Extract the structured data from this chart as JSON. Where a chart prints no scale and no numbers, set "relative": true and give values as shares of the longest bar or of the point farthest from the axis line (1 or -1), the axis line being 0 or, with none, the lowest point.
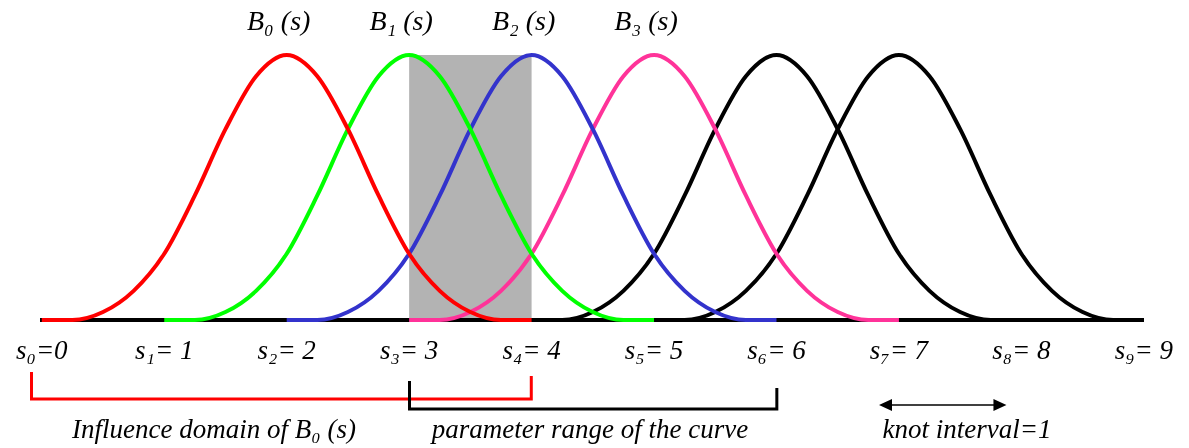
{
  "chart_data": {
    "type": "line",
    "relative": true,
    "marker": "none",
    "line_style": "solid",
    "x": [
      0,
      0.25,
      0.5,
      0.75,
      1,
      1.25,
      1.5,
      1.75,
      2,
      2.25,
      2.5,
      2.75,
      3,
      3.25,
      3.5,
      3.75,
      4,
      4.25,
      4.5,
      4.75,
      5,
      5.25,
      5.5,
      5.75,
      6,
      6.25,
      6.5,
      6.75,
      7,
      7.25,
      7.5,
      7.75,
      8,
      8.25,
      8.5,
      8.75,
      9
    ],
    "xlim": [
      0,
      9
    ],
    "xticks": [
      {
        "value": 0,
        "label": "s₀=0"
      },
      {
        "value": 1,
        "label": "s₁= 1"
      },
      {
        "value": 2,
        "label": "s₂= 2"
      },
      {
        "value": 3,
        "label": "s₃= 3"
      },
      {
        "value": 4,
        "label": "s₄= 4"
      },
      {
        "value": 5,
        "label": "s₅= 5"
      },
      {
        "value": 6,
        "label": "s₆= 6"
      },
      {
        "value": 7,
        "label": "s₇= 7"
      },
      {
        "value": 8,
        "label": "s₈= 8"
      },
      {
        "value": 9,
        "label": "s₉= 9"
      }
    ],
    "series": [
      {
        "name": "B₀ (s)",
        "color": "#ff0000",
        "values": [
          0,
          0,
          0.03,
          0.11,
          0.25,
          0.47,
          0.72,
          0.92,
          1,
          0.92,
          0.72,
          0.47,
          0.25,
          0.11,
          0.03,
          0,
          0,
          null,
          null,
          null,
          null,
          null,
          null,
          null,
          null,
          null,
          null,
          null,
          null,
          null,
          null,
          null,
          null,
          null,
          null,
          null,
          null
        ]
      },
      {
        "name": "B₁ (s)",
        "color": "#00ff00",
        "values": [
          null,
          null,
          null,
          null,
          0,
          0,
          0.03,
          0.11,
          0.25,
          0.47,
          0.72,
          0.92,
          1,
          0.92,
          0.72,
          0.47,
          0.25,
          0.11,
          0.03,
          0,
          0,
          null,
          null,
          null,
          null,
          null,
          null,
          null,
          null,
          null,
          null,
          null,
          null,
          null,
          null,
          null,
          null
        ]
      },
      {
        "name": "B₂ (s)",
        "color": "#3333cc",
        "values": [
          null,
          null,
          null,
          null,
          null,
          null,
          null,
          null,
          0,
          0,
          0.03,
          0.11,
          0.25,
          0.47,
          0.72,
          0.92,
          1,
          0.92,
          0.72,
          0.47,
          0.25,
          0.11,
          0.03,
          0,
          0,
          null,
          null,
          null,
          null,
          null,
          null,
          null,
          null,
          null,
          null,
          null,
          null
        ]
      },
      {
        "name": "B₃ (s)",
        "color": "#ff3399",
        "values": [
          null,
          null,
          null,
          null,
          null,
          null,
          null,
          null,
          null,
          null,
          null,
          null,
          0,
          0,
          0.03,
          0.11,
          0.25,
          0.47,
          0.72,
          0.92,
          1,
          0.92,
          0.72,
          0.47,
          0.25,
          0.11,
          0.03,
          0,
          0,
          null,
          null,
          null,
          null,
          null,
          null,
          null,
          null
        ]
      },
      {
        "color": "#000000",
        "values": [
          null,
          null,
          null,
          null,
          null,
          null,
          null,
          null,
          null,
          null,
          null,
          null,
          null,
          null,
          null,
          null,
          0,
          0,
          0.03,
          0.11,
          0.25,
          0.47,
          0.72,
          0.92,
          1,
          0.92,
          0.72,
          0.47,
          0.25,
          0.11,
          0.03,
          0,
          0,
          null,
          null,
          null,
          null
        ]
      },
      {
        "color": "#000000",
        "values": [
          null,
          null,
          null,
          null,
          null,
          null,
          null,
          null,
          null,
          null,
          null,
          null,
          null,
          null,
          null,
          null,
          null,
          null,
          null,
          null,
          0,
          0,
          0.03,
          0.11,
          0.25,
          0.47,
          0.72,
          0.92,
          1,
          0.92,
          0.72,
          0.47,
          0.25,
          0.11,
          0.03,
          0,
          0
        ]
      }
    ],
    "bands": [
      {
        "axis": "x",
        "from": 3,
        "to": 4,
        "color": "#b3b3b3"
      }
    ],
    "annotations": [
      "Influence domain of B₀ (s)",
      "parameter range of the curve",
      "knot interval=1"
    ]
  }
}
